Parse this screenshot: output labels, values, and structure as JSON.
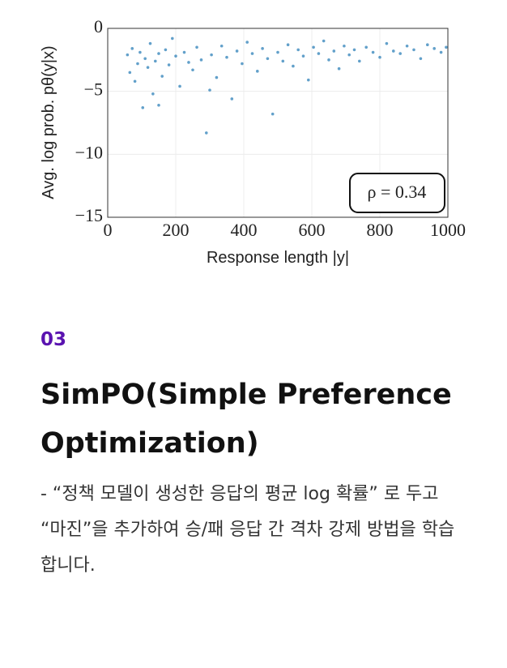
{
  "chart_data": {
    "type": "scatter",
    "xlabel": "Response length |y|",
    "ylabel": "Avg. log prob. pθ(y|x)",
    "annotation": "ρ = 0.34",
    "color": "#1f77b4",
    "grid": true,
    "xlim": [
      0,
      1000
    ],
    "ylim": [
      -15,
      0
    ],
    "xticks": [
      0,
      200,
      400,
      600,
      800,
      1000
    ],
    "yticks": [
      {
        "value": 0,
        "label": "0"
      },
      {
        "value": -5,
        "label": "−5"
      },
      {
        "value": -10,
        "label": "−10"
      },
      {
        "value": -15,
        "label": "−15"
      }
    ],
    "x": [
      58,
      65,
      72,
      80,
      88,
      95,
      103,
      110,
      118,
      125,
      133,
      140,
      150,
      160,
      170,
      180,
      190,
      200,
      212,
      225,
      238,
      250,
      262,
      275,
      290,
      305,
      320,
      335,
      350,
      365,
      380,
      395,
      410,
      425,
      440,
      455,
      470,
      485,
      500,
      515,
      530,
      545,
      560,
      575,
      590,
      605,
      620,
      635,
      650,
      665,
      680,
      695,
      710,
      725,
      740,
      760,
      780,
      800,
      820,
      840,
      860,
      880,
      900,
      920,
      940,
      960,
      980,
      995,
      150,
      300
    ],
    "values": [
      -2.1,
      -3.5,
      -1.6,
      -4.2,
      -2.8,
      -1.9,
      -6.3,
      -2.4,
      -3.1,
      -1.2,
      -5.2,
      -2.6,
      -2.0,
      -3.8,
      -1.7,
      -2.9,
      -0.8,
      -2.2,
      -4.6,
      -1.9,
      -2.7,
      -3.3,
      -1.5,
      -2.5,
      -8.3,
      -2.1,
      -3.9,
      -1.4,
      -2.3,
      -5.6,
      -1.8,
      -2.8,
      -1.1,
      -2.0,
      -3.4,
      -1.6,
      -2.4,
      -6.8,
      -1.9,
      -2.6,
      -1.3,
      -3.0,
      -1.7,
      -2.2,
      -4.1,
      -1.5,
      -2.0,
      -1.0,
      -2.5,
      -1.8,
      -3.2,
      -1.4,
      -2.1,
      -1.7,
      -2.6,
      -1.5,
      -1.9,
      -2.3,
      -1.2,
      -1.8,
      -2.0,
      -1.4,
      -1.7,
      -2.4,
      -1.3,
      -1.6,
      -1.9,
      -1.5,
      -6.1,
      -4.9
    ]
  },
  "section": {
    "number": "03",
    "title": "SimPO(Simple Preference Optimization)",
    "body": "- “정책 모델이 생성한 응답의 평균 log 확률” 로 두고 “마진”을 추가하여 승/패 응답 간 격차 강제 방법을 학습합니다."
  }
}
